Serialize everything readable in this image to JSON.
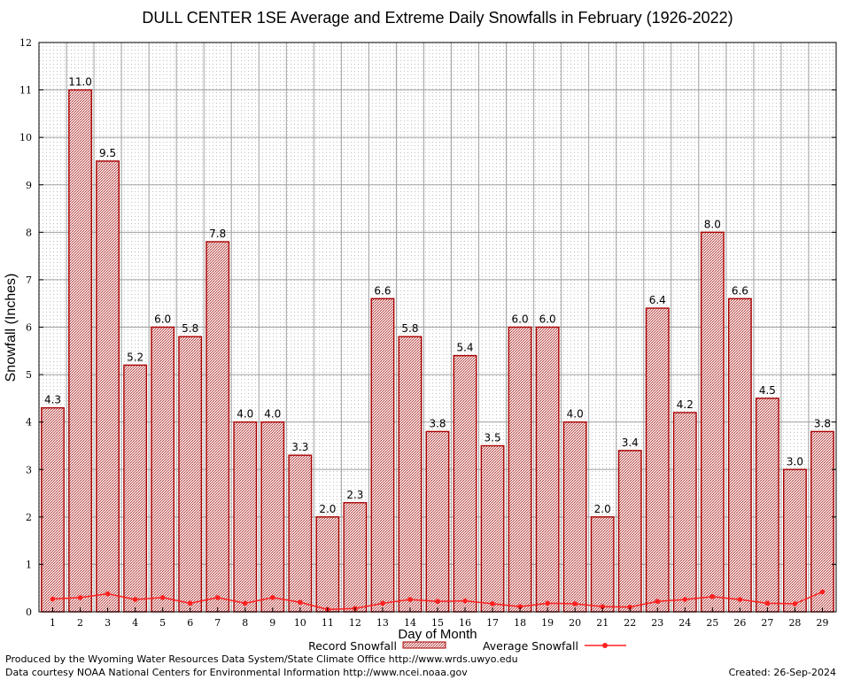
{
  "chart_data": {
    "type": "bar",
    "title": "DULL CENTER 1SE Average and Extreme Daily Snowfalls in February (1926-2022)",
    "xlabel": "Day of Month",
    "ylabel": "Snowfall (Inches)",
    "ylim": [
      0,
      12
    ],
    "yticks": [
      "0",
      "1",
      "2",
      "3",
      "4",
      "5",
      "6",
      "7",
      "8",
      "9",
      "10",
      "11",
      "12"
    ],
    "categories": [
      "1",
      "2",
      "3",
      "4",
      "5",
      "6",
      "7",
      "8",
      "9",
      "10",
      "11",
      "12",
      "13",
      "14",
      "15",
      "16",
      "17",
      "18",
      "19",
      "20",
      "21",
      "22",
      "23",
      "24",
      "25",
      "26",
      "27",
      "28",
      "29"
    ],
    "series": [
      {
        "name": "Record Snowfall",
        "type": "bar",
        "color": "#aa0000",
        "values": [
          4.3,
          11.0,
          9.5,
          5.2,
          6.0,
          5.8,
          7.8,
          4.0,
          4.0,
          3.3,
          2.0,
          2.3,
          6.6,
          5.8,
          3.8,
          5.4,
          3.5,
          6.0,
          6.0,
          4.0,
          2.0,
          3.4,
          6.4,
          4.2,
          8.0,
          6.6,
          4.5,
          3.0,
          3.8
        ],
        "labels": [
          "4.3",
          "11.0",
          "9.5",
          "5.2",
          "6.0",
          "5.8",
          "7.8",
          "4.0",
          "4.0",
          "3.3",
          "2.0",
          "2.3",
          "6.6",
          "5.8",
          "3.8",
          "5.4",
          "3.5",
          "6.0",
          "6.0",
          "4.0",
          "2.0",
          "3.4",
          "6.4",
          "4.2",
          "8.0",
          "6.6",
          "4.5",
          "3.0",
          "3.8"
        ]
      },
      {
        "name": "Average Snowfall",
        "type": "line",
        "color": "#ff2020",
        "values": [
          0.27,
          0.3,
          0.38,
          0.26,
          0.3,
          0.18,
          0.3,
          0.18,
          0.3,
          0.2,
          0.05,
          0.07,
          0.18,
          0.26,
          0.22,
          0.23,
          0.17,
          0.11,
          0.18,
          0.17,
          0.11,
          0.1,
          0.22,
          0.26,
          0.32,
          0.26,
          0.18,
          0.17,
          0.42
        ]
      }
    ],
    "legend": {
      "placement": "bottom",
      "items": [
        "Record Snowfall",
        "Average Snowfall"
      ]
    }
  },
  "footer": {
    "produced_by": "Produced by the Wyoming Water Resources Data System/State Climate Office http://www.wrds.uwyo.edu",
    "courtesy": "Data courtesy NOAA National Centers for Environmental Information http://www.ncei.noaa.gov",
    "created": "Created:  26-Sep-2024"
  }
}
